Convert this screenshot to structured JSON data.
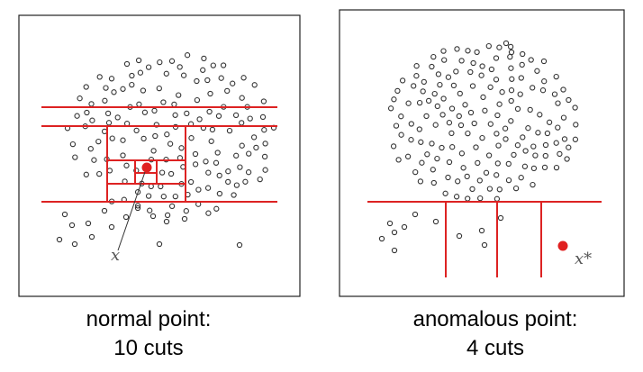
{
  "panels": [
    {
      "id": "normal",
      "point_label": "x",
      "caption_line1": "normal point:",
      "caption_line2": "10 cuts"
    },
    {
      "id": "anomalous",
      "point_label": "x*",
      "caption_line1": "anomalous point:",
      "caption_line2": "4 cuts"
    }
  ],
  "colors": {
    "cut": "#dd2222",
    "point_outline": "#333333",
    "highlight_point": "#e02020",
    "frame": "#222222"
  }
}
